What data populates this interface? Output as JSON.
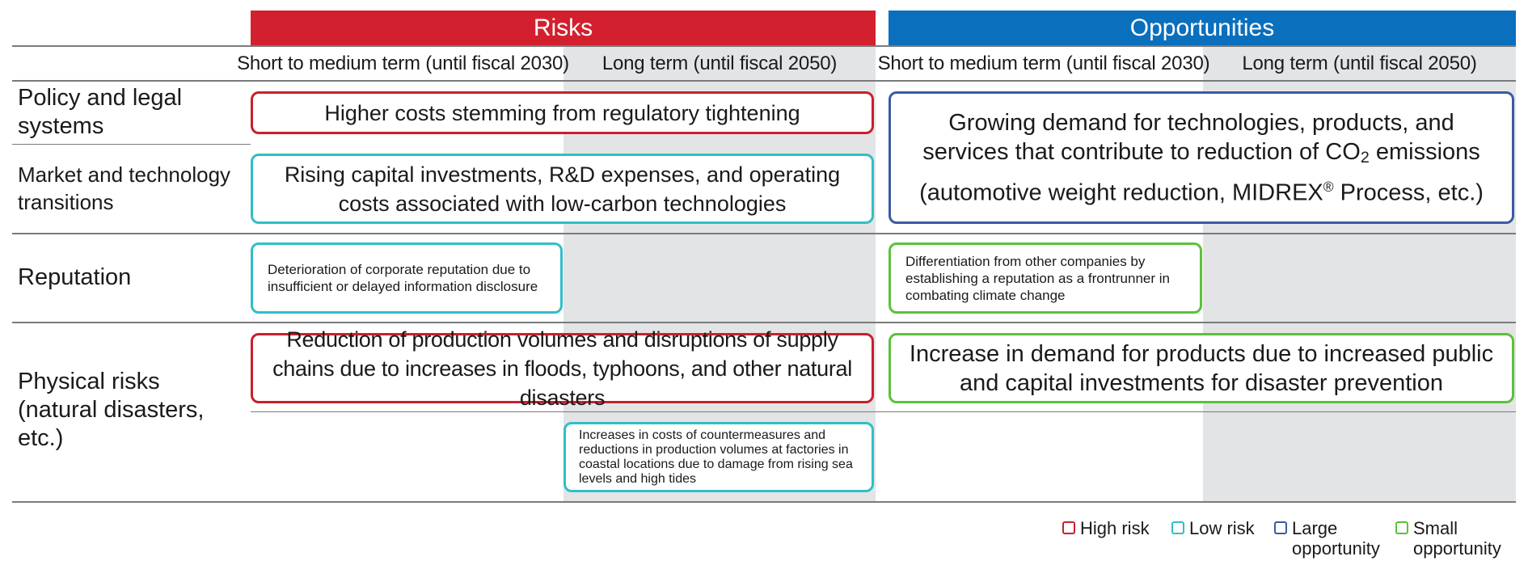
{
  "headers": {
    "risks": "Risks",
    "opportunities": "Opportunities"
  },
  "terms": {
    "short": "Short to medium term (until fiscal 2030)",
    "long": "Long term (until fiscal 2050)"
  },
  "rows": {
    "policy": "Policy and legal systems",
    "market": "Market and technology transitions",
    "reputation": "Reputation",
    "physical": "Physical risks (natural disasters, etc.)"
  },
  "boxes": {
    "policy_risk": "Higher costs stemming from regulatory tightening",
    "market_risk": "Rising capital investments, R&D expenses, and operating costs associated with low-carbon technologies",
    "policy_market_opportunity": {
      "line1": "Growing demand for technologies, products, and",
      "line2_before": "services that contribute to reduction of CO",
      "line2_sub": "2",
      "line2_after": " emissions",
      "line3_before": "(automotive weight reduction, MIDREX",
      "line3_reg": "®",
      "line3_after": " Process, etc.)"
    },
    "reputation_risk": "Deterioration of corporate reputation due to insufficient or delayed information disclosure",
    "reputation_opportunity": "Differentiation from other companies by establishing a reputation as a frontrunner in combating climate change",
    "physical_risk_short": "Reduction of production volumes and disruptions of supply chains due to increases in floods, typhoons, and other natural disasters",
    "physical_opportunity": "Increase in demand for products due to increased public and capital investments for disaster prevention",
    "physical_risk_long": "Increases in costs of countermeasures and reductions in production volumes at factories in coastal locations due to damage from rising sea levels and high tides"
  },
  "legend": {
    "high_risk": "High risk",
    "low_risk": "Low risk",
    "large_opportunity": "Large opportunity",
    "small_opportunity": "Small opportunity"
  },
  "colors": {
    "risks_header": "#d3202e",
    "opportunities_header": "#0a6fbd",
    "high_risk": "#c8202c",
    "low_risk": "#2fbfc6",
    "large_opportunity": "#3a5ba3",
    "small_opportunity": "#5cc13a",
    "long_term_shade": "#e3e4e6"
  }
}
